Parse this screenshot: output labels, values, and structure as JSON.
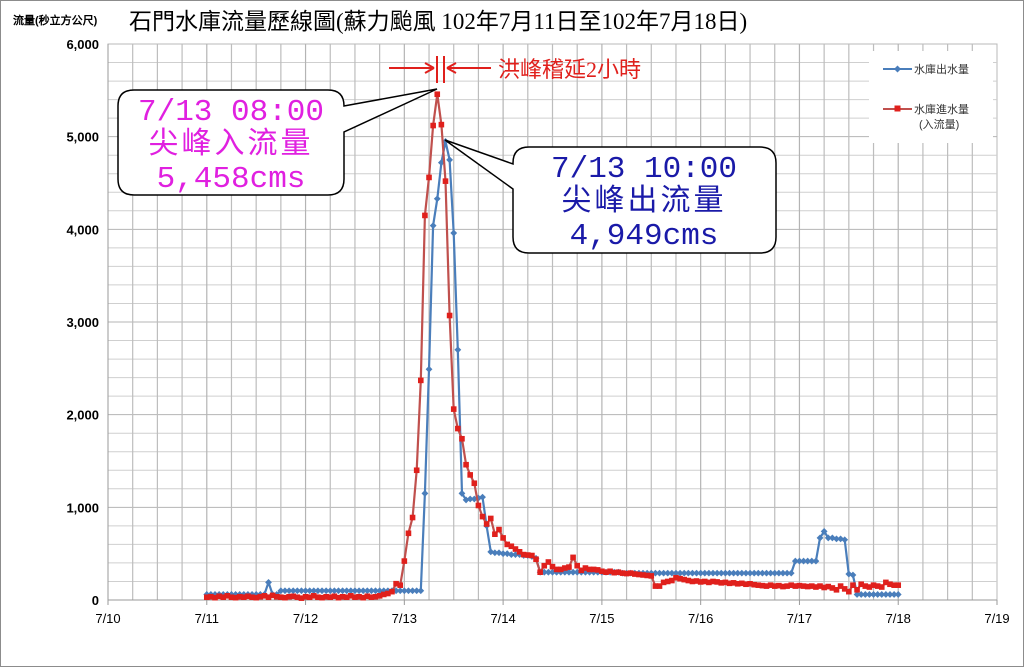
{
  "chart_data": {
    "type": "line",
    "title": "石門水庫流量歷線圖(蘇力颱風 102年7月11日至102年7月18日)",
    "ylabel": "流量(秒立方公尺)",
    "xlabel": "",
    "ylim": [
      0,
      6000
    ],
    "yticks": [
      "0",
      "1,000",
      "2,000",
      "3,000",
      "4,000",
      "5,000",
      "6,000"
    ],
    "xticks": [
      "7/10",
      "7/11",
      "7/12",
      "7/13",
      "7/14",
      "7/15",
      "7/16",
      "7/17",
      "7/18",
      "7/19"
    ],
    "grid": true,
    "legend_position": "top-right",
    "x": [
      "7/11 00:00",
      "7/11 01:00",
      "7/11 02:00",
      "7/11 03:00",
      "7/11 04:00",
      "7/11 05:00",
      "7/11 06:00",
      "7/11 07:00",
      "7/11 08:00",
      "7/11 09:00",
      "7/11 10:00",
      "7/11 11:00",
      "7/11 12:00",
      "7/11 13:00",
      "7/11 14:00",
      "7/11 15:00",
      "7/11 16:00",
      "7/11 17:00",
      "7/11 18:00",
      "7/11 19:00",
      "7/11 20:00",
      "7/11 21:00",
      "7/11 22:00",
      "7/11 23:00",
      "7/12 00:00",
      "7/12 01:00",
      "7/12 02:00",
      "7/12 03:00",
      "7/12 04:00",
      "7/12 05:00",
      "7/12 06:00",
      "7/12 07:00",
      "7/12 08:00",
      "7/12 09:00",
      "7/12 10:00",
      "7/12 11:00",
      "7/12 12:00",
      "7/12 13:00",
      "7/12 14:00",
      "7/12 15:00",
      "7/12 16:00",
      "7/12 17:00",
      "7/12 18:00",
      "7/12 19:00",
      "7/12 20:00",
      "7/12 21:00",
      "7/12 22:00",
      "7/12 23:00",
      "7/13 00:00",
      "7/13 01:00",
      "7/13 02:00",
      "7/13 03:00",
      "7/13 04:00",
      "7/13 05:00",
      "7/13 06:00",
      "7/13 07:00",
      "7/13 08:00",
      "7/13 09:00",
      "7/13 10:00",
      "7/13 11:00",
      "7/13 12:00",
      "7/13 13:00",
      "7/13 14:00",
      "7/13 15:00",
      "7/13 16:00",
      "7/13 17:00",
      "7/13 18:00",
      "7/13 19:00",
      "7/13 20:00",
      "7/13 21:00",
      "7/13 22:00",
      "7/13 23:00",
      "7/14 00:00",
      "7/14 01:00",
      "7/14 02:00",
      "7/14 03:00",
      "7/14 04:00",
      "7/14 05:00",
      "7/14 06:00",
      "7/14 07:00",
      "7/14 08:00",
      "7/14 09:00",
      "7/14 10:00",
      "7/14 11:00",
      "7/14 12:00",
      "7/14 13:00",
      "7/14 14:00",
      "7/14 15:00",
      "7/14 16:00",
      "7/14 17:00",
      "7/14 18:00",
      "7/14 19:00",
      "7/14 20:00",
      "7/14 21:00",
      "7/14 22:00",
      "7/14 23:00",
      "7/15 00:00",
      "7/15 01:00",
      "7/15 02:00",
      "7/15 03:00",
      "7/15 04:00",
      "7/15 05:00",
      "7/15 06:00",
      "7/15 07:00",
      "7/15 08:00",
      "7/15 09:00",
      "7/15 10:00",
      "7/15 11:00",
      "7/15 12:00",
      "7/15 13:00",
      "7/15 14:00",
      "7/15 15:00",
      "7/15 16:00",
      "7/15 17:00",
      "7/15 18:00",
      "7/15 19:00",
      "7/15 20:00",
      "7/15 21:00",
      "7/15 22:00",
      "7/15 23:00",
      "7/16 00:00",
      "7/16 01:00",
      "7/16 02:00",
      "7/16 03:00",
      "7/16 04:00",
      "7/16 05:00",
      "7/16 06:00",
      "7/16 07:00",
      "7/16 08:00",
      "7/16 09:00",
      "7/16 10:00",
      "7/16 11:00",
      "7/16 12:00",
      "7/16 13:00",
      "7/16 14:00",
      "7/16 15:00",
      "7/16 16:00",
      "7/16 17:00",
      "7/16 18:00",
      "7/16 19:00",
      "7/16 20:00",
      "7/16 21:00",
      "7/16 22:00",
      "7/16 23:00",
      "7/17 00:00",
      "7/17 01:00",
      "7/17 02:00",
      "7/17 03:00",
      "7/17 04:00",
      "7/17 05:00",
      "7/17 06:00",
      "7/17 07:00",
      "7/17 08:00",
      "7/17 09:00",
      "7/17 10:00",
      "7/17 11:00",
      "7/17 12:00",
      "7/17 13:00",
      "7/17 14:00",
      "7/17 15:00",
      "7/17 16:00",
      "7/17 17:00",
      "7/17 18:00",
      "7/17 19:00",
      "7/17 20:00",
      "7/17 21:00",
      "7/17 22:00",
      "7/17 23:00",
      "7/18 00:00"
    ],
    "series": [
      {
        "name": "水庫出水量",
        "color": "#4a7ebb",
        "marker": "diamond",
        "values": [
          60,
          60,
          60,
          60,
          60,
          60,
          60,
          60,
          60,
          60,
          60,
          60,
          60,
          60,
          60,
          190,
          60,
          60,
          100,
          100,
          100,
          100,
          100,
          100,
          100,
          100,
          100,
          100,
          100,
          100,
          100,
          100,
          100,
          100,
          100,
          100,
          100,
          100,
          100,
          100,
          100,
          100,
          100,
          100,
          100,
          100,
          100,
          100,
          100,
          100,
          100,
          100,
          100,
          1150,
          2490,
          4040,
          4330,
          4720,
          4949,
          4750,
          3960,
          2700,
          1150,
          1080,
          1090,
          1090,
          1100,
          1110,
          800,
          520,
          510,
          510,
          500,
          500,
          490,
          490,
          490,
          480,
          480,
          470,
          450,
          300,
          300,
          300,
          300,
          300,
          300,
          300,
          300,
          300,
          300,
          300,
          300,
          300,
          300,
          300,
          300,
          300,
          300,
          300,
          300,
          290,
          290,
          290,
          290,
          290,
          290,
          290,
          290,
          290,
          290,
          290,
          290,
          290,
          290,
          290,
          290,
          290,
          290,
          290,
          290,
          290,
          290,
          290,
          290,
          290,
          290,
          290,
          290,
          290,
          290,
          290,
          290,
          290,
          290,
          290,
          290,
          290,
          290,
          290,
          290,
          290,
          290,
          420,
          420,
          420,
          420,
          420,
          420,
          670,
          740,
          670,
          670,
          660,
          660,
          650,
          280,
          270,
          60,
          60,
          60,
          60,
          60,
          60,
          60,
          60,
          60,
          60,
          60
        ]
      },
      {
        "name": "水庫進水量(入流量)",
        "color": "#e0201c",
        "marker": "square",
        "values": [
          30,
          35,
          25,
          40,
          30,
          45,
          30,
          25,
          35,
          30,
          40,
          30,
          25,
          35,
          45,
          30,
          50,
          35,
          30,
          25,
          35,
          40,
          30,
          20,
          35,
          30,
          45,
          30,
          25,
          35,
          30,
          40,
          25,
          35,
          30,
          45,
          30,
          35,
          25,
          40,
          30,
          35,
          45,
          60,
          70,
          90,
          176,
          160,
          420,
          720,
          890,
          1400,
          2370,
          4150,
          4560,
          5120,
          5458,
          5130,
          4520,
          3070,
          2060,
          1850,
          1740,
          1460,
          1350,
          1260,
          1020,
          900,
          820,
          880,
          710,
          760,
          670,
          600,
          580,
          550,
          520,
          490,
          485,
          480,
          440,
          300,
          370,
          410,
          360,
          330,
          330,
          345,
          355,
          460,
          370,
          320,
          345,
          330,
          330,
          325,
          310,
          300,
          310,
          295,
          300,
          290,
          285,
          290,
          280,
          275,
          270,
          265,
          260,
          150,
          150,
          190,
          200,
          210,
          240,
          230,
          220,
          210,
          200,
          205,
          195,
          200,
          190,
          200,
          195,
          185,
          190,
          180,
          185,
          175,
          180,
          170,
          175,
          165,
          160,
          155,
          150,
          160,
          150,
          155,
          145,
          150,
          160,
          150,
          155,
          150,
          145,
          150,
          140,
          150,
          135,
          145,
          130,
          110,
          150,
          120,
          90,
          160,
          110,
          170,
          150,
          140,
          160,
          150,
          140,
          190,
          170,
          160,
          160
        ]
      }
    ],
    "legend": {
      "outflow_label": "水庫出水量",
      "inflow_label_line1": "水庫進水量",
      "inflow_label_line2": "(入流量)"
    },
    "annotations": {
      "lag_label": "洪峰稽延2小時",
      "lag_color": "#e0201c",
      "peak_inflow": {
        "time": "7/13 08:00",
        "label": "尖峰入流量",
        "value": "5,458cms",
        "color": "#e020e0"
      },
      "peak_outflow": {
        "time": "7/13 10:00",
        "label": "尖峰出流量",
        "value": "4,949cms",
        "color": "#1a1aa8"
      }
    }
  }
}
